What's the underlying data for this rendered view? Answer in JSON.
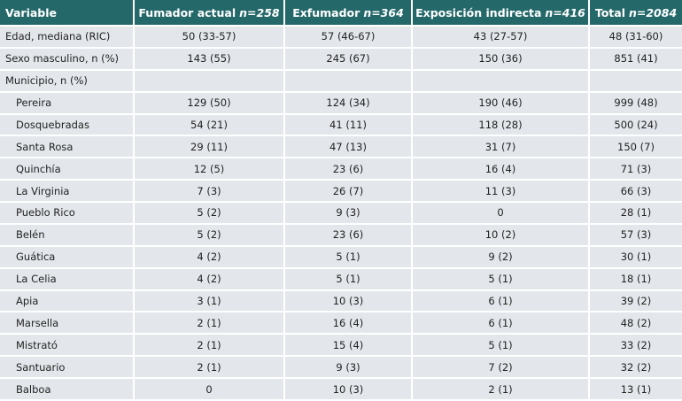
{
  "table": {
    "header": [
      {
        "label": "Variable"
      },
      {
        "label": "Fumador actual",
        "n": "n=258"
      },
      {
        "label": "Exfumador",
        "n": "n=364"
      },
      {
        "label": "Exposición indirecta",
        "n": "n=416"
      },
      {
        "label": "Total",
        "n": "n=2084"
      }
    ],
    "rows": [
      [
        "Edad, mediana (RIC)",
        "50 (33-57)",
        "57 (46-67)",
        "43 (27-57)",
        "48 (31-60)"
      ],
      [
        "Sexo masculino, n (%)",
        "143 (55)",
        "245 (67)",
        "150 (36)",
        "851 (41)"
      ]
    ],
    "group": {
      "label": "Municipio, n (%)",
      "rows": [
        [
          "Pereira",
          "129 (50)",
          "124 (34)",
          "190 (46)",
          "999 (48)"
        ],
        [
          "Dosquebradas",
          "54 (21)",
          "41 (11)",
          "118 (28)",
          "500 (24)"
        ],
        [
          "Santa Rosa",
          "29 (11)",
          "47 (13)",
          "31 (7)",
          "150 (7)"
        ],
        [
          "Quinchía",
          "12 (5)",
          "23 (6)",
          "16 (4)",
          "71 (3)"
        ],
        [
          "La Virginia",
          "7 (3)",
          "26 (7)",
          "11 (3)",
          "66 (3)"
        ],
        [
          "Pueblo Rico",
          "5 (2)",
          "9 (3)",
          "0",
          "28 (1)"
        ],
        [
          "Belén",
          "5 (2)",
          "23 (6)",
          "10 (2)",
          "57 (3)"
        ],
        [
          "Guática",
          "4 (2)",
          "5 (1)",
          "9 (2)",
          "30 (1)"
        ],
        [
          "La Celia",
          "4 (2)",
          "5 (1)",
          "5 (1)",
          "18 (1)"
        ],
        [
          "Apia",
          "3 (1)",
          "10 (3)",
          "6 (1)",
          "39 (2)"
        ],
        [
          "Marsella",
          "2 (1)",
          "16 (4)",
          "6 (1)",
          "48 (2)"
        ],
        [
          "Mistrató",
          "2 (1)",
          "15 (4)",
          "5 (1)",
          "33 (2)"
        ],
        [
          "Santuario",
          "2 (1)",
          "9 (3)",
          "7 (2)",
          "32 (2)"
        ],
        [
          "Balboa",
          "0",
          "10 (3)",
          "2 (1)",
          "13 (1)"
        ]
      ]
    }
  }
}
